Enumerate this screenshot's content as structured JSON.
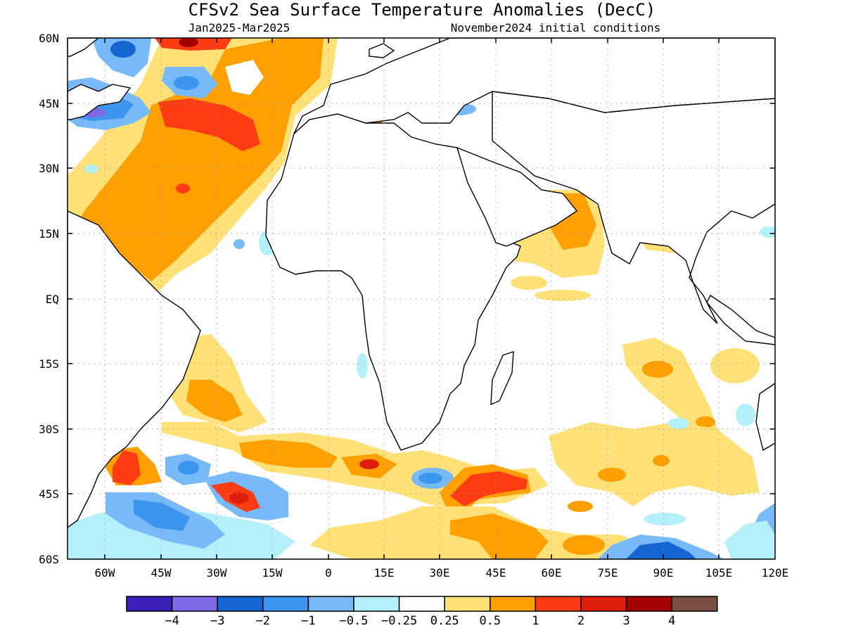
{
  "title": "CFSv2 Sea Surface Temperature Anomalies (DecC)",
  "subtitle_left": "Jan2025-Mar2025",
  "subtitle_right": "November2024 initial conditions",
  "lon_ticks": [
    "60W",
    "45W",
    "30W",
    "15W",
    "0",
    "15E",
    "30E",
    "45E",
    "60E",
    "75E",
    "90E",
    "105E",
    "120E"
  ],
  "lat_ticks": [
    "60N",
    "45N",
    "30N",
    "15N",
    "EQ",
    "15S",
    "30S",
    "45S",
    "60S"
  ],
  "legend": {
    "colors": [
      "#3b1fb8",
      "#7f68e6",
      "#1464d2",
      "#3c96f0",
      "#78b9fa",
      "#b4f0fa",
      "#ffffff",
      "#ffe178",
      "#ffa000",
      "#ff3c14",
      "#e01c0a",
      "#a50000",
      "#7a5045"
    ],
    "labels": [
      "-4",
      "-3",
      "-2",
      "-1",
      "-0.5",
      "-0.25",
      "0.25",
      "0.5",
      "1",
      "2",
      "3",
      "4"
    ]
  },
  "map_extent": {
    "lon_min": -70,
    "lon_max": 120,
    "lat_min": -60,
    "lat_max": 60
  },
  "anomaly_regions": [
    {
      "name": "subtropical-north-atlantic-warm",
      "level": "1"
    },
    {
      "name": "north-atlantic-midlat-warm",
      "level": "2"
    },
    {
      "name": "labrador-sea-cold",
      "level": "-2"
    },
    {
      "name": "newfoundland-cold",
      "level": "-4"
    },
    {
      "name": "arabian-sea-warm",
      "level": "1"
    },
    {
      "name": "bay-of-bengal-warm",
      "level": "1"
    },
    {
      "name": "south-indian-ocean-warm",
      "level": "2"
    },
    {
      "name": "brazil-malvinas-confluence-warm",
      "level": "2"
    },
    {
      "name": "south-atlantic-cold",
      "level": "-1"
    },
    {
      "name": "southern-ocean-cold",
      "level": "-2"
    }
  ]
}
